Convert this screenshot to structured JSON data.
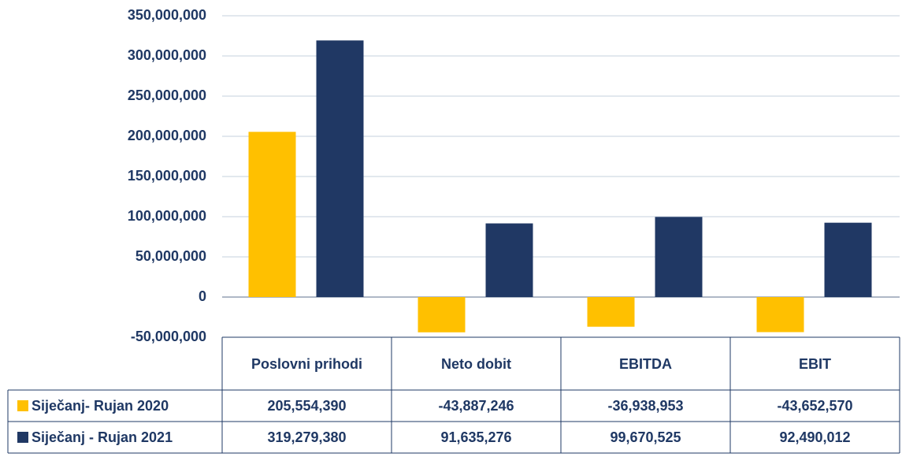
{
  "chart_data": {
    "type": "bar",
    "categories": [
      "Poslovni prihodi",
      "Neto dobit",
      "EBITDA",
      "EBIT"
    ],
    "series": [
      {
        "name": "Siječanj- Rujan 2020",
        "color": "#FFC000",
        "values": [
          205554390,
          -43887246,
          -36938953,
          -43652570
        ],
        "value_labels": [
          "205,554,390",
          "-43,887,246",
          "-36,938,953",
          "-43,652,570"
        ]
      },
      {
        "name": "Siječanj - Rujan 2021",
        "color": "#203864",
        "values": [
          319279380,
          91635276,
          99670525,
          92490012
        ],
        "value_labels": [
          "319,279,380",
          "91,635,276",
          "99,670,525",
          "92,490,012"
        ]
      }
    ],
    "ylim": [
      -50000000,
      350000000
    ],
    "yticks": [
      {
        "value": -50000000,
        "label": "-50,000,000"
      },
      0,
      {
        "value": 50000000,
        "label": "50,000,000"
      },
      {
        "value": 100000000,
        "label": "100,000,000"
      },
      {
        "value": 150000000,
        "label": "150,000,000"
      },
      {
        "value": 200000000,
        "label": "200,000,000"
      },
      {
        "value": 250000000,
        "label": "250,000,000"
      },
      {
        "value": 300000000,
        "label": "300,000,000"
      },
      {
        "value": 350000000,
        "label": "350,000,000"
      }
    ],
    "grid": true
  }
}
